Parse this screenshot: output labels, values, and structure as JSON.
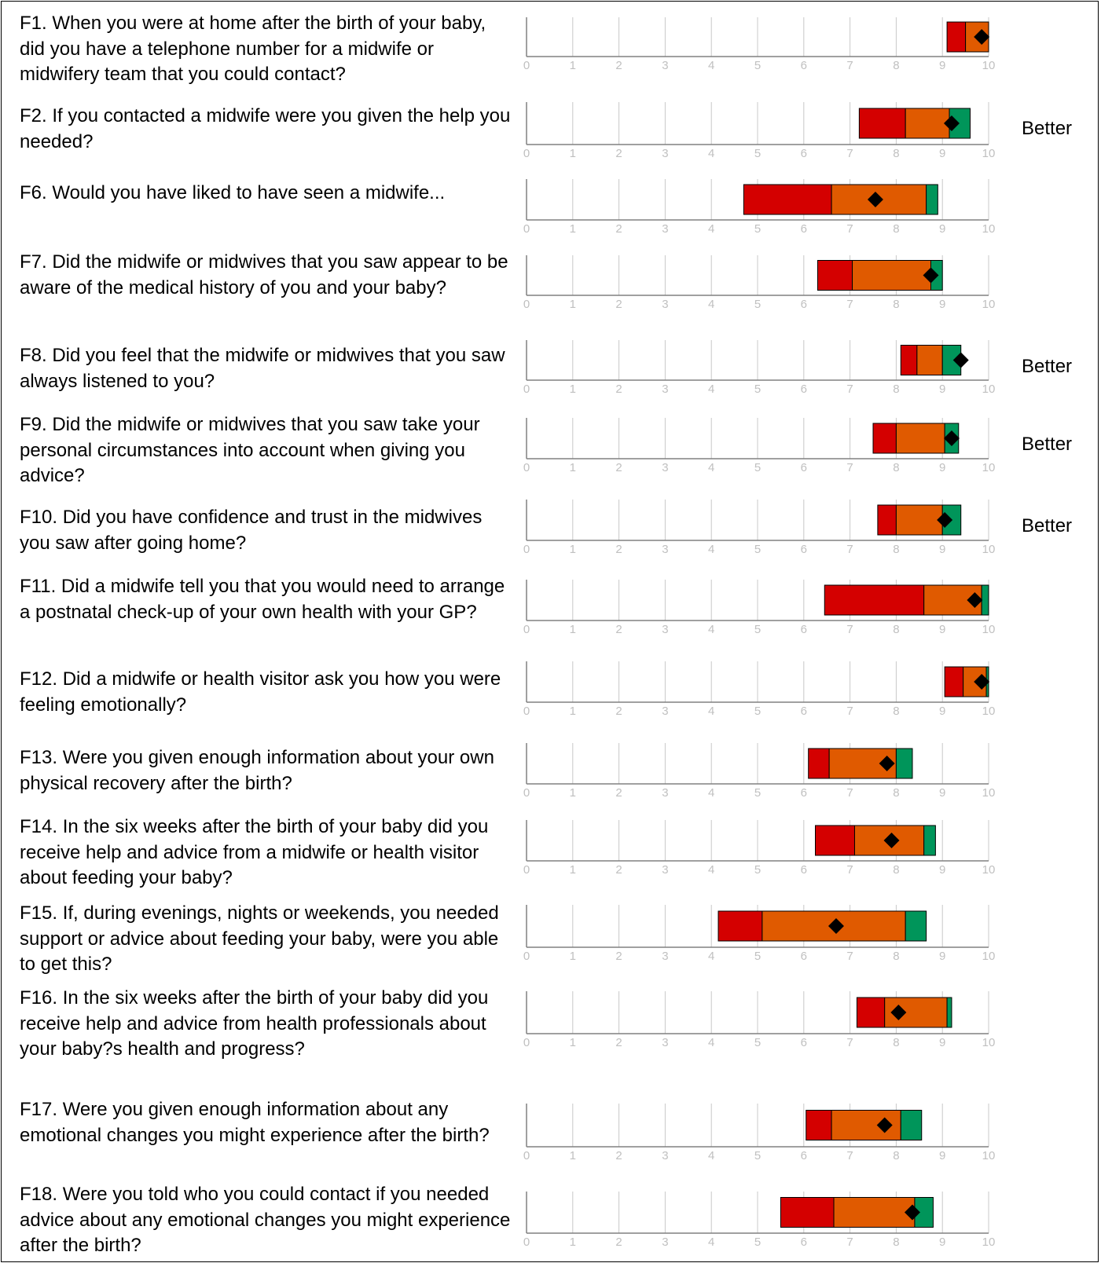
{
  "chart_data": {
    "type": "range-bar",
    "xlim": [
      0,
      10
    ],
    "ticks": [
      "0",
      "1",
      "2",
      "3",
      "4",
      "5",
      "6",
      "7",
      "8",
      "9",
      "10"
    ],
    "colors": {
      "low": "#d40000",
      "mid": "#e05a00",
      "high": "#00955a",
      "marker": "#000000",
      "axis": "#808080",
      "tick_label": "#c0c0c0"
    },
    "questions": [
      {
        "label": "F1. When you were at home after the birth of your baby, did you have a telephone number for a midwife or midwifery team that you could contact?",
        "low_start": 9.1,
        "mid_start": 9.5,
        "high_start": 10.0,
        "high_end": 10.0,
        "score": 9.85,
        "result": ""
      },
      {
        "label": "F2. If you contacted a midwife were you given the help you needed?",
        "low_start": 7.2,
        "mid_start": 8.2,
        "high_start": 9.15,
        "high_end": 9.6,
        "score": 9.2,
        "result": "Better"
      },
      {
        "label": "F6. Would you have liked to have seen a midwife...",
        "low_start": 4.7,
        "mid_start": 6.6,
        "high_start": 8.65,
        "high_end": 8.9,
        "score": 7.55,
        "result": ""
      },
      {
        "label": "F7. Did the midwife or midwives that you saw appear to be aware of the medical history of you and your baby?",
        "low_start": 6.3,
        "mid_start": 7.05,
        "high_start": 8.75,
        "high_end": 9.0,
        "score": 8.75,
        "result": ""
      },
      {
        "label": "F8. Did you feel that the midwife or midwives that you saw always listened to you?",
        "low_start": 8.1,
        "mid_start": 8.45,
        "high_start": 9.0,
        "high_end": 9.4,
        "score": 9.4,
        "result": "Better"
      },
      {
        "label": "F9. Did the midwife or midwives that you saw take your personal circumstances into account when giving you advice?",
        "low_start": 7.5,
        "mid_start": 8.0,
        "high_start": 9.05,
        "high_end": 9.35,
        "score": 9.2,
        "result": "Better"
      },
      {
        "label": "F10. Did you have confidence and trust in the midwives you saw after going home?",
        "low_start": 7.6,
        "mid_start": 8.0,
        "high_start": 9.0,
        "high_end": 9.4,
        "score": 9.05,
        "result": "Better"
      },
      {
        "label": "F11. Did a midwife tell you that you would need to arrange a postnatal check-up of your own health with your GP?",
        "low_start": 6.45,
        "mid_start": 8.6,
        "high_start": 9.85,
        "high_end": 10.0,
        "score": 9.7,
        "result": ""
      },
      {
        "label": "F12. Did a midwife or health visitor ask you how you were feeling emotionally?",
        "low_start": 9.05,
        "mid_start": 9.45,
        "high_start": 9.95,
        "high_end": 10.0,
        "score": 9.85,
        "result": ""
      },
      {
        "label": "F13. Were you given enough information about your own physical recovery after the birth?",
        "low_start": 6.1,
        "mid_start": 6.55,
        "high_start": 8.0,
        "high_end": 8.35,
        "score": 7.8,
        "result": ""
      },
      {
        "label": "F14. In the six weeks after the birth of your baby did you receive help and advice from a midwife or health visitor about feeding your baby?",
        "low_start": 6.25,
        "mid_start": 7.1,
        "high_start": 8.6,
        "high_end": 8.85,
        "score": 7.9,
        "result": ""
      },
      {
        "label": "F15. If, during evenings, nights or weekends, you needed support or advice about feeding your baby, were you able to get this?",
        "low_start": 4.15,
        "mid_start": 5.1,
        "high_start": 8.2,
        "high_end": 8.65,
        "score": 6.7,
        "result": ""
      },
      {
        "label": "F16. In the six weeks after the birth of your baby did you receive help and advice from health professionals about your baby?s health and progress?",
        "low_start": 7.15,
        "mid_start": 7.75,
        "high_start": 9.1,
        "high_end": 9.2,
        "score": 8.05,
        "result": ""
      },
      {
        "label": "F17. Were you given enough information about any emotional changes you might experience after the birth?",
        "low_start": 6.05,
        "mid_start": 6.6,
        "high_start": 8.1,
        "high_end": 8.55,
        "score": 7.75,
        "result": ""
      },
      {
        "label": "F18. Were you told who you could contact if you needed advice about any emotional changes you might experience after the birth?",
        "low_start": 5.5,
        "mid_start": 6.65,
        "high_start": 8.4,
        "high_end": 8.8,
        "score": 8.35,
        "result": ""
      }
    ]
  }
}
